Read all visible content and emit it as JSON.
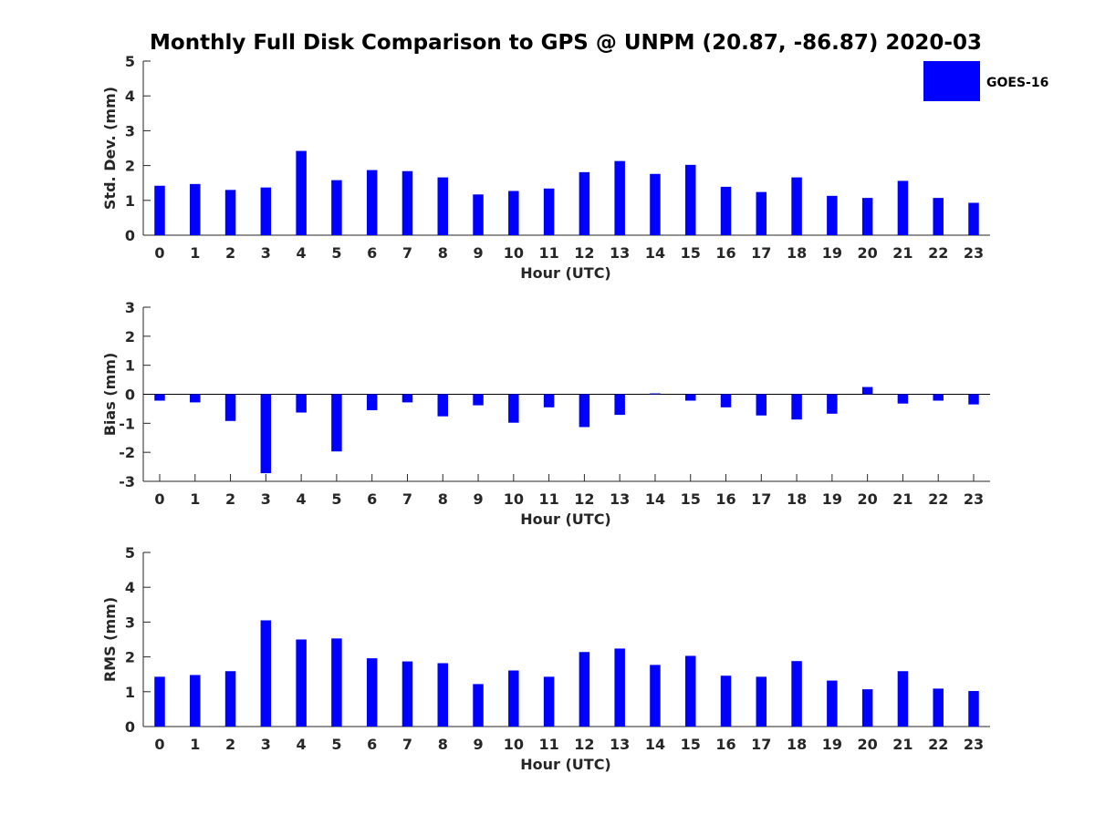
{
  "title": "Monthly Full Disk Comparison to GPS @ UNPM (20.87, -86.87) 2020-03",
  "legend": {
    "label": "GOES-16",
    "placement": "top-right"
  },
  "colors": {
    "bar": "#0000ff",
    "axis": "#262626"
  },
  "chart_data": [
    {
      "type": "bar",
      "name": "std",
      "categories": [
        "0",
        "1",
        "2",
        "3",
        "4",
        "5",
        "6",
        "7",
        "8",
        "9",
        "10",
        "11",
        "12",
        "13",
        "14",
        "15",
        "16",
        "17",
        "18",
        "19",
        "20",
        "21",
        "22",
        "23"
      ],
      "series": [
        {
          "name": "GOES-16",
          "values": [
            1.42,
            1.47,
            1.3,
            1.37,
            2.42,
            1.58,
            1.87,
            1.84,
            1.66,
            1.17,
            1.27,
            1.34,
            1.81,
            2.13,
            1.76,
            2.02,
            1.39,
            1.24,
            1.66,
            1.13,
            1.07,
            1.56,
            1.07,
            0.93
          ]
        }
      ],
      "xlabel": "Hour (UTC)",
      "ylabel": "Std. Dev. (mm)",
      "ylim": [
        0,
        5
      ],
      "yticks": [
        0,
        1,
        2,
        3,
        4,
        5
      ],
      "grid": false
    },
    {
      "type": "bar",
      "name": "bias",
      "categories": [
        "0",
        "1",
        "2",
        "3",
        "4",
        "5",
        "6",
        "7",
        "8",
        "9",
        "10",
        "11",
        "12",
        "13",
        "14",
        "15",
        "16",
        "17",
        "18",
        "19",
        "20",
        "21",
        "22",
        "23"
      ],
      "series": [
        {
          "name": "GOES-16",
          "values": [
            -0.22,
            -0.28,
            -0.92,
            -2.72,
            -0.63,
            -1.97,
            -0.55,
            -0.28,
            -0.76,
            -0.38,
            -0.98,
            -0.45,
            -1.13,
            -0.71,
            0.03,
            -0.22,
            -0.45,
            -0.73,
            -0.87,
            -0.67,
            0.25,
            -0.32,
            -0.22,
            -0.35
          ]
        }
      ],
      "xlabel": "Hour (UTC)",
      "ylabel": "Bias (mm)",
      "ylim": [
        -3,
        3
      ],
      "yticks": [
        -3,
        -2,
        -1,
        0,
        1,
        2,
        3
      ],
      "grid": false,
      "zero_line": true
    },
    {
      "type": "bar",
      "name": "rms",
      "categories": [
        "0",
        "1",
        "2",
        "3",
        "4",
        "5",
        "6",
        "7",
        "8",
        "9",
        "10",
        "11",
        "12",
        "13",
        "14",
        "15",
        "16",
        "17",
        "18",
        "19",
        "20",
        "21",
        "22",
        "23"
      ],
      "series": [
        {
          "name": "GOES-16",
          "values": [
            1.43,
            1.48,
            1.59,
            3.05,
            2.5,
            2.53,
            1.96,
            1.87,
            1.82,
            1.22,
            1.61,
            1.43,
            2.14,
            2.24,
            1.77,
            2.03,
            1.46,
            1.43,
            1.88,
            1.32,
            1.07,
            1.59,
            1.09,
            1.02
          ]
        }
      ],
      "xlabel": "Hour (UTC)",
      "ylabel": "RMS (mm)",
      "ylim": [
        0,
        5
      ],
      "yticks": [
        0,
        1,
        2,
        3,
        4,
        5
      ],
      "grid": false
    }
  ]
}
